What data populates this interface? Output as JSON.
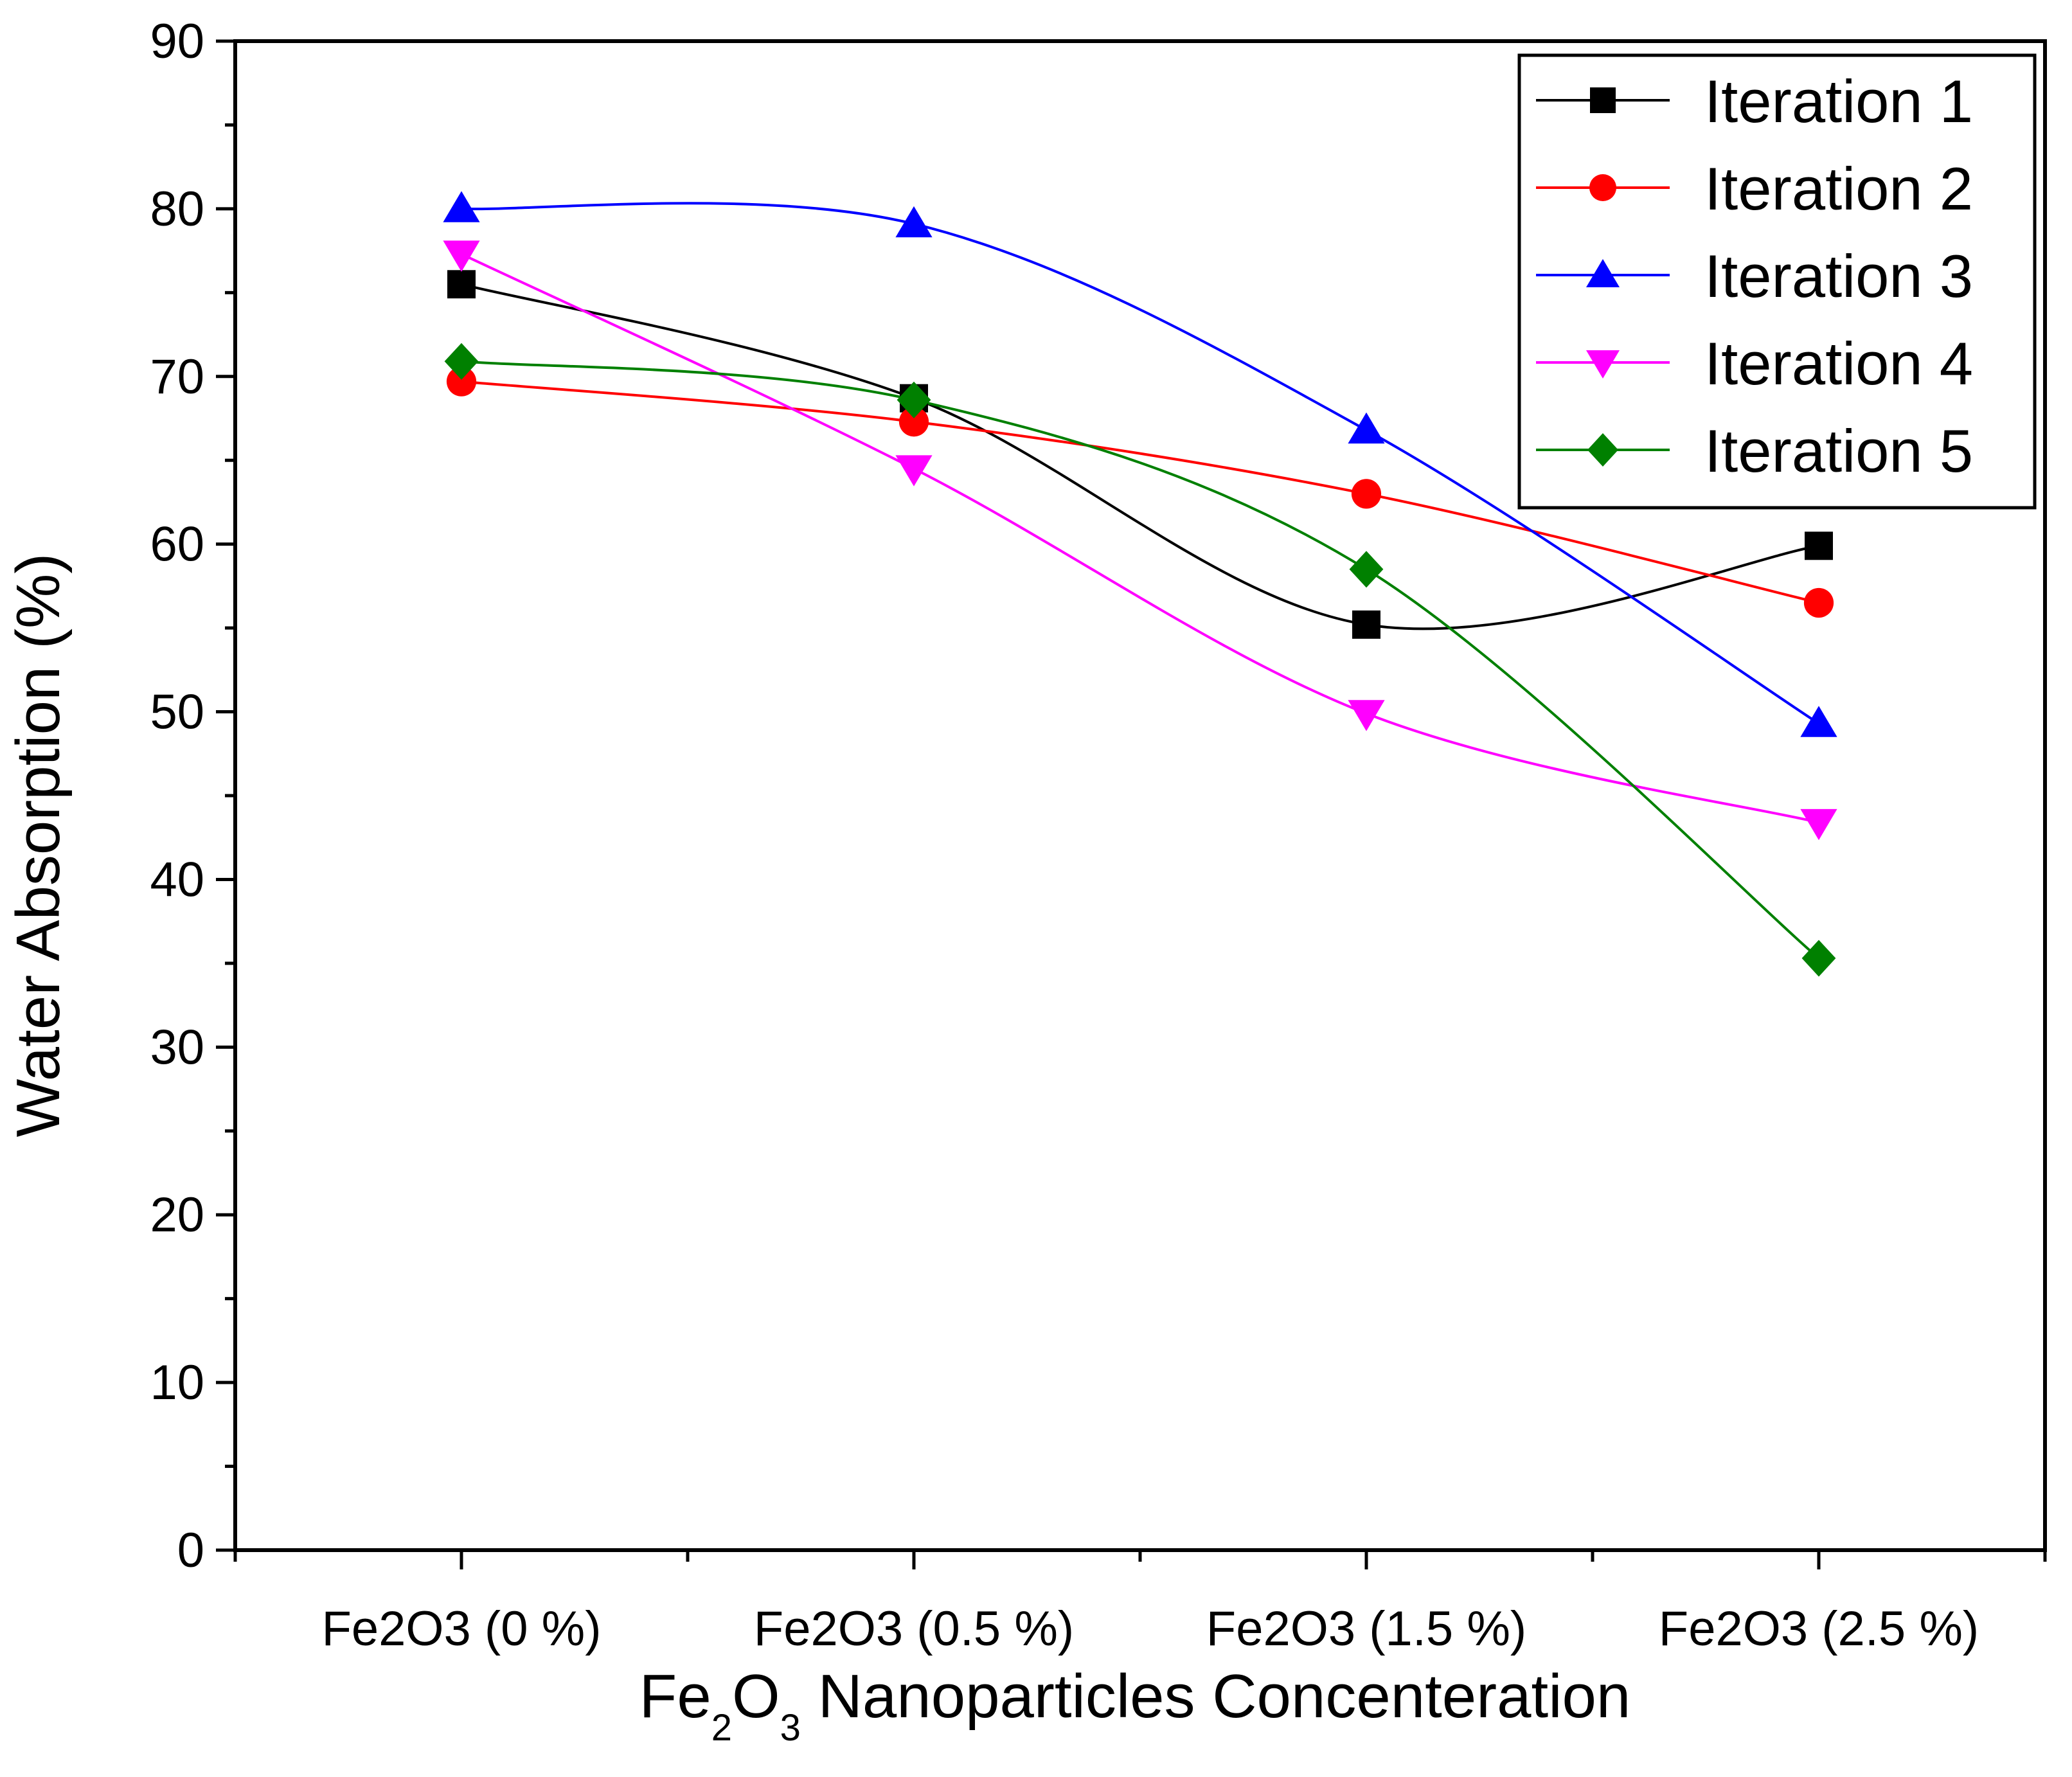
{
  "chart_data": {
    "type": "line",
    "categories": [
      "Fe2O3 (0 %)",
      "Fe2O3 (0.5 %)",
      "Fe2O3 (1.5 %)",
      "Fe2O3 (2.5 %)"
    ],
    "xlabel": {
      "parts": [
        {
          "text": "Fe",
          "sub": false
        },
        {
          "text": "2",
          "sub": true
        },
        {
          "text": "O",
          "sub": false
        },
        {
          "text": "3",
          "sub": true
        },
        {
          "text": " Nanoparticles Concenteration",
          "sub": false
        }
      ]
    },
    "ylabel": "Water Absorption (%)",
    "ylim": [
      0,
      90
    ],
    "yticks": [
      0,
      10,
      20,
      30,
      40,
      50,
      60,
      70,
      80,
      90
    ],
    "grid": false,
    "legend_position": "top-right",
    "series": [
      {
        "name": "Iteration 1",
        "color": "#000000",
        "marker": "square",
        "values": [
          75.5,
          68.7,
          55.2,
          59.9
        ]
      },
      {
        "name": "Iteration 2",
        "color": "#ff0000",
        "marker": "circle",
        "values": [
          69.7,
          67.3,
          63.0,
          56.5
        ]
      },
      {
        "name": "Iteration 3",
        "color": "#0000ff",
        "marker": "triangle-up",
        "values": [
          80.0,
          79.1,
          66.8,
          49.3
        ]
      },
      {
        "name": "Iteration 4",
        "color": "#ff00ff",
        "marker": "triangle-down",
        "values": [
          77.3,
          64.5,
          49.9,
          43.4
        ]
      },
      {
        "name": "Iteration 5",
        "color": "#008000",
        "marker": "diamond",
        "values": [
          70.9,
          68.6,
          58.5,
          35.3
        ]
      }
    ]
  }
}
